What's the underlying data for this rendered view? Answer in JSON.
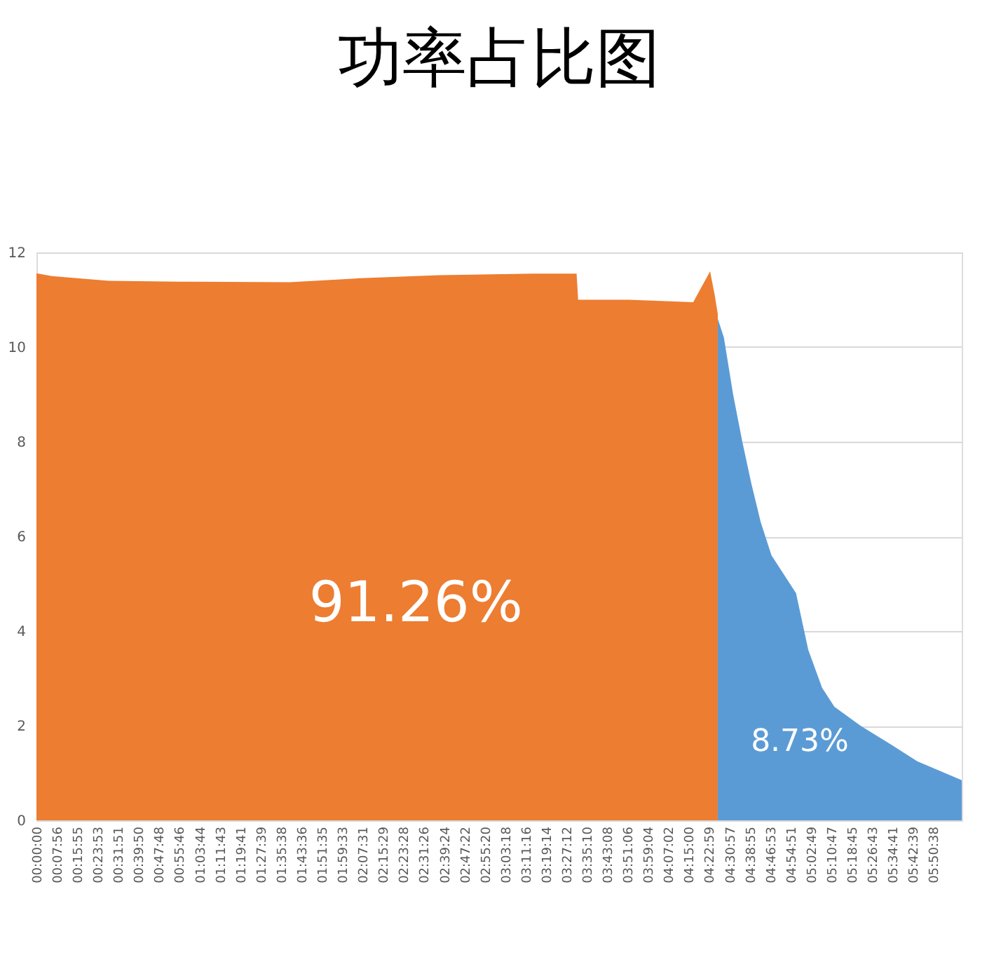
{
  "chart_data": {
    "type": "area",
    "title": "功率占比图",
    "series": [
      {
        "color": "#ed7d31",
        "x": [
          0,
          0.1,
          0.47,
          1.0,
          1.65,
          2.08,
          2.62,
          3.24,
          3.52,
          3.53,
          3.86,
          4.28,
          4.39,
          4.42,
          4.44
        ],
        "values": [
          11.56,
          11.5,
          11.4,
          11.38,
          11.37,
          11.45,
          11.52,
          11.55,
          11.55,
          11.0,
          11.0,
          10.95,
          11.6,
          11.1,
          10.7
        ]
      },
      {
        "color": "#5b9bd5",
        "x": [
          4.44,
          4.48,
          4.54,
          4.6,
          4.66,
          4.72,
          4.79,
          4.87,
          4.95,
          5.03,
          5.12,
          5.2,
          5.37,
          5.57,
          5.74,
          6.03
        ],
        "values": [
          10.6,
          10.2,
          9.0,
          8.0,
          7.1,
          6.3,
          5.6,
          5.2,
          4.8,
          3.6,
          2.8,
          2.4,
          2.0,
          1.6,
          1.25,
          0.85
        ]
      }
    ],
    "annotations": [
      "91.26%",
      "8.73%"
    ],
    "ylim": [
      0,
      12
    ],
    "yticks": [
      0,
      2,
      4,
      6,
      8,
      10,
      12
    ],
    "xlim": [
      0,
      6.03
    ],
    "xticks": [
      {
        "value": 0,
        "label": "00:00:00"
      },
      {
        "value": 0.1322,
        "label": "00:07:56"
      },
      {
        "value": 0.2653,
        "label": "00:15:55"
      },
      {
        "value": 0.3981,
        "label": "00:23:53"
      },
      {
        "value": 0.5308,
        "label": "00:31:51"
      },
      {
        "value": 0.6639,
        "label": "00:39:50"
      },
      {
        "value": 0.7967,
        "label": "00:47:48"
      },
      {
        "value": 0.9294,
        "label": "00:55:46"
      },
      {
        "value": 1.0622,
        "label": "01:03:44"
      },
      {
        "value": 1.1953,
        "label": "01:11:43"
      },
      {
        "value": 1.3281,
        "label": "01:19:41"
      },
      {
        "value": 1.4608,
        "label": "01:27:39"
      },
      {
        "value": 1.5939,
        "label": "01:35:38"
      },
      {
        "value": 1.7267,
        "label": "01:43:36"
      },
      {
        "value": 1.8597,
        "label": "01:51:35"
      },
      {
        "value": 1.9925,
        "label": "01:59:33"
      },
      {
        "value": 2.1253,
        "label": "02:07:31"
      },
      {
        "value": 2.2581,
        "label": "02:15:29"
      },
      {
        "value": 2.3911,
        "label": "02:23:28"
      },
      {
        "value": 2.5239,
        "label": "02:31:26"
      },
      {
        "value": 2.6567,
        "label": "02:39:24"
      },
      {
        "value": 2.7894,
        "label": "02:47:22"
      },
      {
        "value": 2.9222,
        "label": "02:55:20"
      },
      {
        "value": 3.055,
        "label": "03:03:18"
      },
      {
        "value": 3.1878,
        "label": "03:11:16"
      },
      {
        "value": 3.3206,
        "label": "03:19:14"
      },
      {
        "value": 3.4533,
        "label": "03:27:12"
      },
      {
        "value": 3.5861,
        "label": "03:35:10"
      },
      {
        "value": 3.7189,
        "label": "03:43:08"
      },
      {
        "value": 3.8517,
        "label": "03:51:06"
      },
      {
        "value": 3.9844,
        "label": "03:59:04"
      },
      {
        "value": 4.1172,
        "label": "04:07:02"
      },
      {
        "value": 4.25,
        "label": "04:15:00"
      },
      {
        "value": 4.3831,
        "label": "04:22:59"
      },
      {
        "value": 4.5158,
        "label": "04:30:57"
      },
      {
        "value": 4.6486,
        "label": "04:38:55"
      },
      {
        "value": 4.7814,
        "label": "04:46:53"
      },
      {
        "value": 4.9142,
        "label": "04:54:51"
      },
      {
        "value": 5.0469,
        "label": "05:02:49"
      },
      {
        "value": 5.1797,
        "label": "05:10:47"
      },
      {
        "value": 5.3125,
        "label": "05:18:45"
      },
      {
        "value": 5.4453,
        "label": "05:26:43"
      },
      {
        "value": 5.5781,
        "label": "05:34:41"
      },
      {
        "value": 5.7108,
        "label": "05:42:39"
      },
      {
        "value": 5.8439,
        "label": "05:50:38"
      }
    ],
    "grid": "y"
  }
}
